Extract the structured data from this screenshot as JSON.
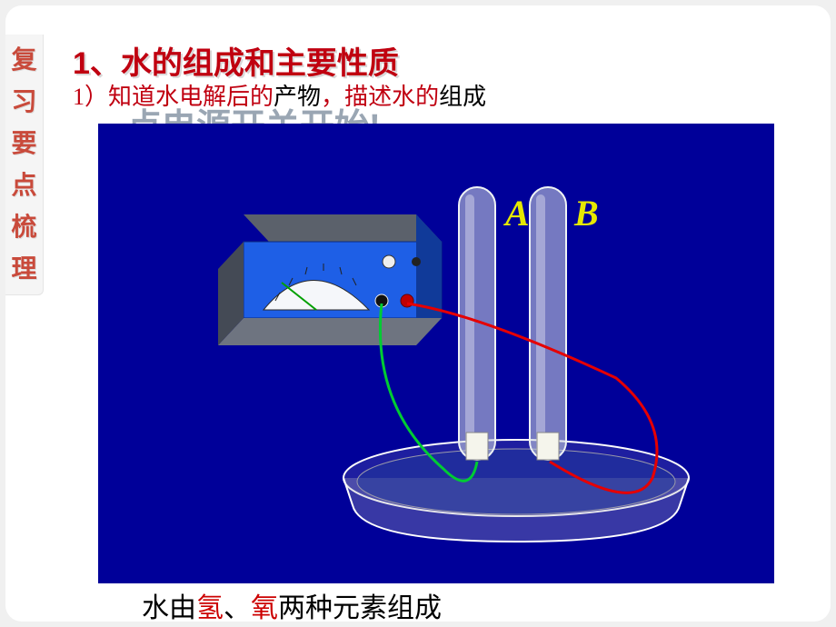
{
  "colors": {
    "page_bg": "#ffffff",
    "outer_bg": "#f0f0f0",
    "sidebar_bg": "#f5f5f5",
    "sidebar_text": "#c94a3b",
    "heading_red": "#c00010",
    "sub_red": "#c00010",
    "sub_black": "#000000",
    "overlay_gray": "#9aa6b3",
    "diagram_bg": "#000099",
    "tube_label": "#e6e800",
    "bottom_black": "#000000",
    "bottom_red": "#cc0000",
    "wire_green": "#00cc33",
    "wire_red": "#e60000",
    "meter_blue": "#1e5fe6",
    "meter_top": "#555b66",
    "meter_face": "#f5f7fa",
    "tube_glass": "#cfd8de",
    "tube_inner": "#a0adba",
    "basin_rim": "#c7c7cc",
    "basin_body": "#b8b8bf"
  },
  "sidebar": {
    "chars": [
      "复",
      "习",
      "要",
      "点",
      "梳",
      "理"
    ]
  },
  "heading": {
    "number": "1",
    "sep": "、",
    "title": "水的组成和主要性质"
  },
  "subline": {
    "prefix": "1）",
    "red1": "知道水电解后的",
    "black1": "产物",
    "red2": "描述水的",
    "black2": "组成",
    "comma": "，"
  },
  "overlay": "点电源开关开始!",
  "diagram": {
    "label_a": "A",
    "label_b": "B"
  },
  "bottom": {
    "prefix": "水由",
    "h": "氢",
    "sep": "、",
    "o": "氧",
    "suffix": "两种元素组成"
  }
}
